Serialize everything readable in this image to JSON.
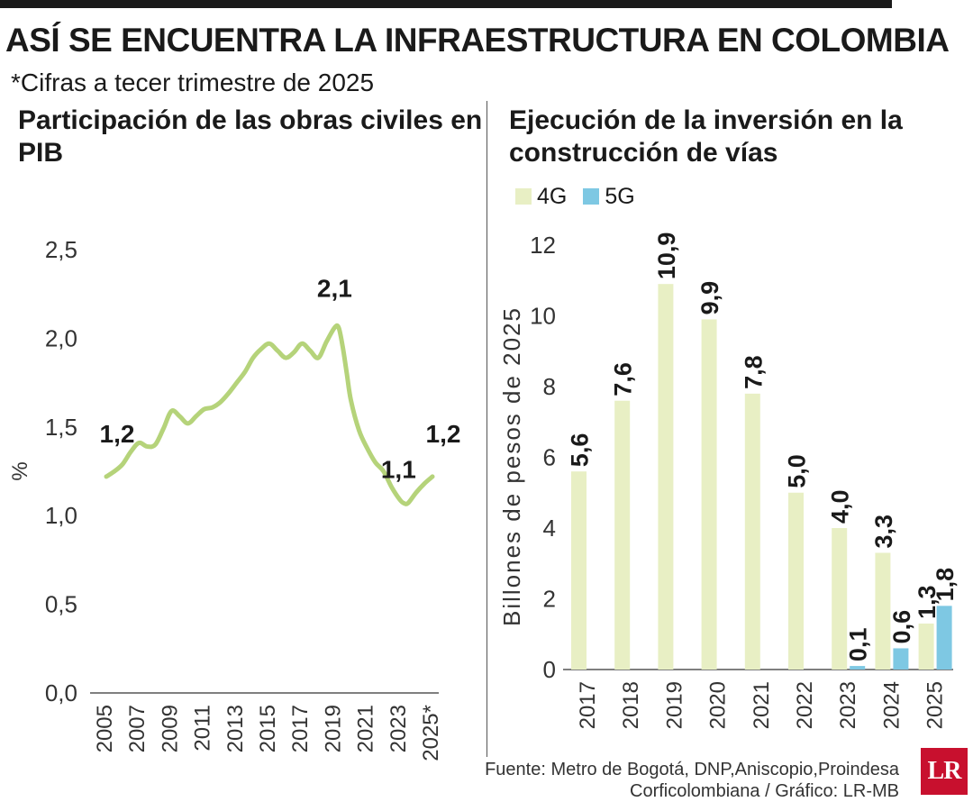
{
  "header": {
    "title": "ASÍ SE ENCUENTRA LA INFRAESTRUCTURA EN COLOMBIA",
    "subtitle": "*Cifras a tecer trimestre de 2025"
  },
  "footer": {
    "source_line1": "Fuente: Metro de Bogotá, DNP,Aniscopio,Proindesa",
    "source_line2": "Corficolombiana / Gráfico: LR-MB",
    "logo": "LR"
  },
  "colors": {
    "fourG": "#e8efc4",
    "fiveG": "#7ec8e3",
    "line": "#b5d37a",
    "text": "#1a1a1a"
  },
  "chart_data": [
    {
      "type": "line",
      "title": "Participación de las obras civiles en PIB",
      "ylabel": "%",
      "ylim": [
        0,
        2.5
      ],
      "yticks": [
        "0,0",
        "0,5",
        "1,0",
        "1,5",
        "2,0",
        "2,5"
      ],
      "xticks": [
        "2005",
        "2007",
        "2009",
        "2011",
        "2013",
        "2015",
        "2017",
        "2019",
        "2021",
        "2023",
        "2025*"
      ],
      "xlim": [
        2005,
        2025
      ],
      "x": [
        2005,
        2005.5,
        2006,
        2006.5,
        2007,
        2007.5,
        2008,
        2008.5,
        2009,
        2009.5,
        2010,
        2010.5,
        2011,
        2011.5,
        2012,
        2012.5,
        2013,
        2013.5,
        2014,
        2014.5,
        2015,
        2015.5,
        2016,
        2016.5,
        2017,
        2017.5,
        2018,
        2018.5,
        2019,
        2019.25,
        2019.5,
        2019.75,
        2020,
        2020.5,
        2021,
        2021.5,
        2022,
        2022.5,
        2023,
        2023.25,
        2023.5,
        2024,
        2024.5,
        2025
      ],
      "y": [
        1.22,
        1.25,
        1.29,
        1.36,
        1.41,
        1.39,
        1.4,
        1.49,
        1.59,
        1.56,
        1.52,
        1.56,
        1.6,
        1.61,
        1.64,
        1.69,
        1.75,
        1.81,
        1.89,
        1.94,
        1.97,
        1.93,
        1.89,
        1.92,
        1.97,
        1.93,
        1.89,
        1.98,
        2.06,
        2.06,
        1.95,
        1.8,
        1.65,
        1.48,
        1.38,
        1.3,
        1.25,
        1.16,
        1.09,
        1.07,
        1.07,
        1.13,
        1.18,
        1.22
      ],
      "annotations": [
        {
          "label": "1,2",
          "x": 2005,
          "y": 1.22
        },
        {
          "label": "2,1",
          "x": 2019,
          "y": 2.06
        },
        {
          "label": "1,1",
          "x": 2023.25,
          "y": 1.07
        },
        {
          "label": "1,2",
          "x": 2025,
          "y": 1.22
        }
      ]
    },
    {
      "type": "bar",
      "title": "Ejecución de la inversión en la construcción de vías",
      "ylabel": "Billones de pesos de 2025",
      "ylim": [
        0,
        12
      ],
      "yticks": [
        "0",
        "2",
        "4",
        "6",
        "8",
        "10",
        "12"
      ],
      "categories": [
        "2017",
        "2018",
        "2019",
        "2020",
        "2021",
        "2022",
        "2023",
        "2024",
        "2025"
      ],
      "series": [
        {
          "name": "4G",
          "values": [
            5.6,
            7.6,
            10.9,
            9.9,
            7.8,
            5.0,
            4.0,
            3.3,
            1.3
          ],
          "labels": [
            "5,6",
            "7,6",
            "10,9",
            "9,9",
            "7,8",
            "5,0",
            "4,0",
            "3,3",
            "1,3"
          ]
        },
        {
          "name": "5G",
          "values": [
            null,
            null,
            null,
            null,
            null,
            null,
            0.1,
            0.6,
            1.8
          ],
          "labels": [
            "",
            "",
            "",
            "",
            "",
            "",
            "0,1",
            "0,6",
            "1,8"
          ]
        }
      ],
      "legend": "top-left"
    }
  ]
}
